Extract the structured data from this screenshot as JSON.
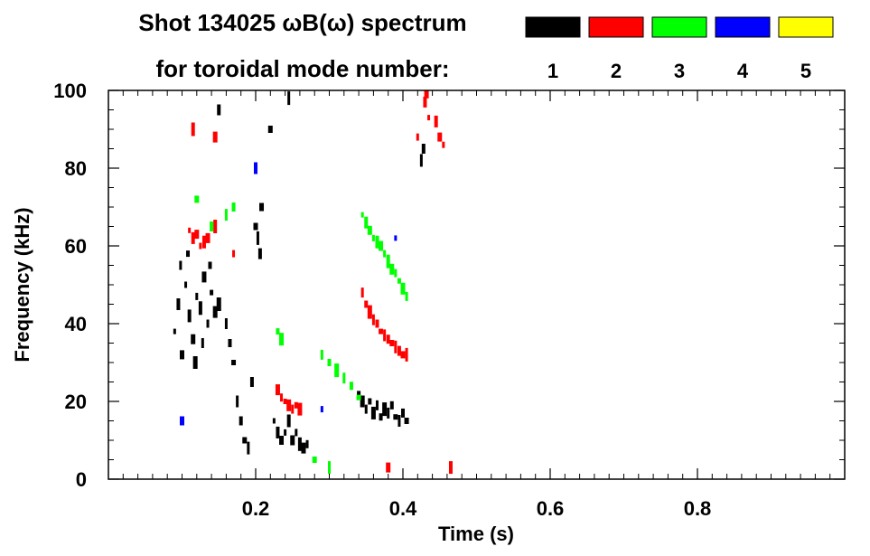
{
  "chart_data": {
    "type": "scatter",
    "title_line1": "Shot 134025 ωB(ω) spectrum",
    "title_line2": "for toroidal mode number:",
    "xlabel": "Time (s)",
    "ylabel": "Frequency (kHz)",
    "xlim": [
      0.0,
      1.0
    ],
    "ylim": [
      0,
      100
    ],
    "x_ticks": [
      {
        "value": 0.2,
        "label": "0.2"
      },
      {
        "value": 0.4,
        "label": "0.4"
      },
      {
        "value": 0.6,
        "label": "0.6"
      },
      {
        "value": 0.8,
        "label": "0.8"
      }
    ],
    "y_ticks": [
      {
        "value": 0,
        "label": "0"
      },
      {
        "value": 20,
        "label": "20"
      },
      {
        "value": 40,
        "label": "40"
      },
      {
        "value": 60,
        "label": "60"
      },
      {
        "value": 80,
        "label": "80"
      },
      {
        "value": 100,
        "label": "100"
      }
    ],
    "legend": [
      {
        "label": "1",
        "color": "#000000"
      },
      {
        "label": "2",
        "color": "#ff0000"
      },
      {
        "label": "3",
        "color": "#00ff00"
      },
      {
        "label": "4",
        "color": "#0000ff"
      },
      {
        "label": "5",
        "color": "#ffff00"
      }
    ],
    "series": [
      {
        "name": "n=1",
        "color": "#000000",
        "points": [
          [
            0.09,
            38
          ],
          [
            0.095,
            45
          ],
          [
            0.1,
            32
          ],
          [
            0.105,
            50
          ],
          [
            0.11,
            42
          ],
          [
            0.115,
            36
          ],
          [
            0.12,
            47
          ],
          [
            0.125,
            44
          ],
          [
            0.13,
            52
          ],
          [
            0.135,
            40
          ],
          [
            0.14,
            48
          ],
          [
            0.145,
            43
          ],
          [
            0.098,
            55
          ],
          [
            0.108,
            58
          ],
          [
            0.118,
            30
          ],
          [
            0.128,
            35
          ],
          [
            0.138,
            55
          ],
          [
            0.15,
            45
          ],
          [
            0.16,
            40
          ],
          [
            0.165,
            35
          ],
          [
            0.17,
            30
          ],
          [
            0.175,
            20
          ],
          [
            0.18,
            15
          ],
          [
            0.185,
            10
          ],
          [
            0.19,
            8
          ],
          [
            0.195,
            25
          ],
          [
            0.2,
            65
          ],
          [
            0.203,
            62
          ],
          [
            0.206,
            58
          ],
          [
            0.208,
            70
          ],
          [
            0.225,
            15
          ],
          [
            0.23,
            12
          ],
          [
            0.235,
            10
          ],
          [
            0.24,
            12
          ],
          [
            0.245,
            15
          ],
          [
            0.25,
            10
          ],
          [
            0.255,
            12
          ],
          [
            0.26,
            9
          ],
          [
            0.265,
            8
          ],
          [
            0.27,
            9
          ],
          [
            0.34,
            22
          ],
          [
            0.345,
            20
          ],
          [
            0.35,
            18
          ],
          [
            0.355,
            20
          ],
          [
            0.36,
            17
          ],
          [
            0.365,
            19
          ],
          [
            0.37,
            16
          ],
          [
            0.375,
            18
          ],
          [
            0.38,
            17
          ],
          [
            0.385,
            19
          ],
          [
            0.39,
            16
          ],
          [
            0.395,
            15
          ],
          [
            0.4,
            17
          ],
          [
            0.405,
            15
          ],
          [
            0.425,
            82
          ],
          [
            0.428,
            85
          ],
          [
            0.22,
            90
          ],
          [
            0.245,
            98
          ],
          [
            0.15,
            95
          ]
        ]
      },
      {
        "name": "n=2",
        "color": "#ff0000",
        "points": [
          [
            0.11,
            64
          ],
          [
            0.115,
            62
          ],
          [
            0.12,
            63
          ],
          [
            0.125,
            60
          ],
          [
            0.13,
            61
          ],
          [
            0.135,
            62
          ],
          [
            0.17,
            58
          ],
          [
            0.145,
            65
          ],
          [
            0.23,
            23
          ],
          [
            0.235,
            21
          ],
          [
            0.24,
            20
          ],
          [
            0.245,
            19
          ],
          [
            0.25,
            18
          ],
          [
            0.255,
            19
          ],
          [
            0.26,
            18
          ],
          [
            0.345,
            48
          ],
          [
            0.35,
            45
          ],
          [
            0.355,
            43
          ],
          [
            0.36,
            41
          ],
          [
            0.365,
            40
          ],
          [
            0.37,
            38
          ],
          [
            0.375,
            37
          ],
          [
            0.38,
            36
          ],
          [
            0.385,
            35
          ],
          [
            0.39,
            34
          ],
          [
            0.395,
            33
          ],
          [
            0.4,
            32
          ],
          [
            0.405,
            32
          ],
          [
            0.43,
            97
          ],
          [
            0.432,
            99
          ],
          [
            0.435,
            93
          ],
          [
            0.445,
            92
          ],
          [
            0.45,
            88
          ],
          [
            0.455,
            86
          ],
          [
            0.465,
            3
          ],
          [
            0.38,
            3
          ],
          [
            0.42,
            88
          ],
          [
            0.115,
            90
          ],
          [
            0.145,
            88
          ]
        ]
      },
      {
        "name": "n=3",
        "color": "#00ff00",
        "points": [
          [
            0.345,
            68
          ],
          [
            0.35,
            66
          ],
          [
            0.355,
            64
          ],
          [
            0.36,
            62
          ],
          [
            0.365,
            61
          ],
          [
            0.37,
            60
          ],
          [
            0.375,
            58
          ],
          [
            0.38,
            56
          ],
          [
            0.385,
            54
          ],
          [
            0.39,
            53
          ],
          [
            0.395,
            51
          ],
          [
            0.4,
            49
          ],
          [
            0.405,
            47
          ],
          [
            0.23,
            38
          ],
          [
            0.235,
            36
          ],
          [
            0.29,
            32
          ],
          [
            0.3,
            30
          ],
          [
            0.31,
            28
          ],
          [
            0.32,
            26
          ],
          [
            0.33,
            24
          ],
          [
            0.34,
            21
          ],
          [
            0.16,
            68
          ],
          [
            0.17,
            70
          ],
          [
            0.28,
            5
          ],
          [
            0.3,
            3
          ],
          [
            0.14,
            65
          ],
          [
            0.12,
            72
          ]
        ]
      },
      {
        "name": "n=4",
        "color": "#0000ff",
        "points": [
          [
            0.39,
            62
          ],
          [
            0.2,
            80
          ],
          [
            0.1,
            15
          ],
          [
            0.29,
            18
          ]
        ]
      },
      {
        "name": "n=5",
        "color": "#ffff00",
        "points": []
      }
    ]
  }
}
